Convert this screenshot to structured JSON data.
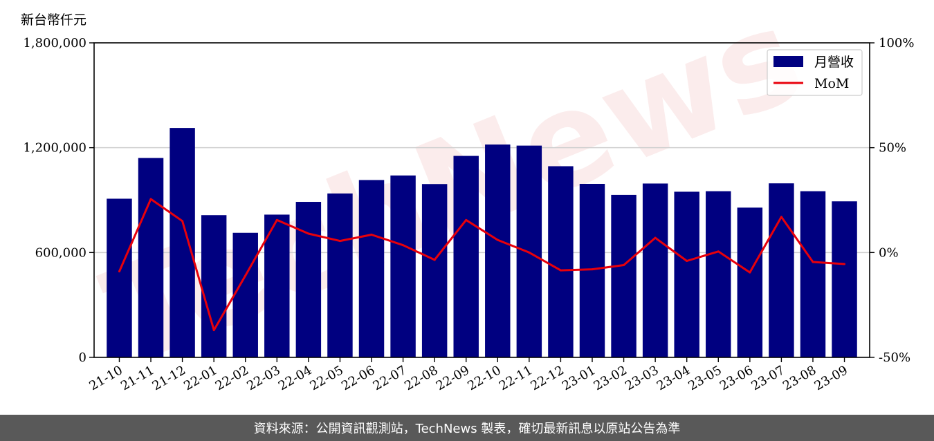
{
  "chart_data": {
    "type": "bar",
    "unit_label": "新台幣仟元",
    "categories": [
      "21-10",
      "21-11",
      "21-12",
      "22-01",
      "22-02",
      "22-03",
      "22-04",
      "22-05",
      "22-06",
      "22-07",
      "22-08",
      "22-09",
      "22-10",
      "22-11",
      "22-12",
      "23-01",
      "23-02",
      "23-03",
      "23-04",
      "23-05",
      "23-06",
      "23-07",
      "23-08",
      "23-09"
    ],
    "series": [
      {
        "name": "月營收",
        "axis": "left",
        "type": "bar",
        "color": "#000080",
        "values": [
          908000,
          1141000,
          1313000,
          814000,
          713000,
          817000,
          890000,
          938000,
          1015000,
          1041000,
          992000,
          1153000,
          1218000,
          1212000,
          1094000,
          993000,
          930000,
          995000,
          948000,
          951000,
          857000,
          996000,
          951000,
          893000
        ]
      },
      {
        "name": "MoM",
        "axis": "right",
        "type": "line",
        "color": "#e8000b",
        "values": [
          -9,
          25.5,
          15,
          -37,
          -11,
          15.5,
          9,
          5.5,
          8.5,
          3.5,
          -3.5,
          15.5,
          6,
          0,
          -8.5,
          -8,
          -6,
          7,
          -4,
          0.5,
          -9.5,
          17,
          -4.5,
          -5.5
        ]
      }
    ],
    "y_left": {
      "ylim": [
        0,
        1800000
      ],
      "ticks": [
        "0",
        "600,000",
        "1,200,000",
        "1,800,000"
      ],
      "tick_values": [
        0,
        600000,
        1200000,
        1800000
      ]
    },
    "y_right": {
      "ylim": [
        -50,
        100
      ],
      "ticks": [
        "-50%",
        "0%",
        "50%",
        "100%"
      ],
      "tick_values": [
        -50,
        0,
        50,
        100
      ]
    },
    "grid": "horizontal",
    "legend_position": "top-right",
    "watermark": "TechNews"
  },
  "footer": {
    "text": "資料來源：公開資訊觀測站，TechNews 製表，確切最新訊息以原站公告為準"
  }
}
